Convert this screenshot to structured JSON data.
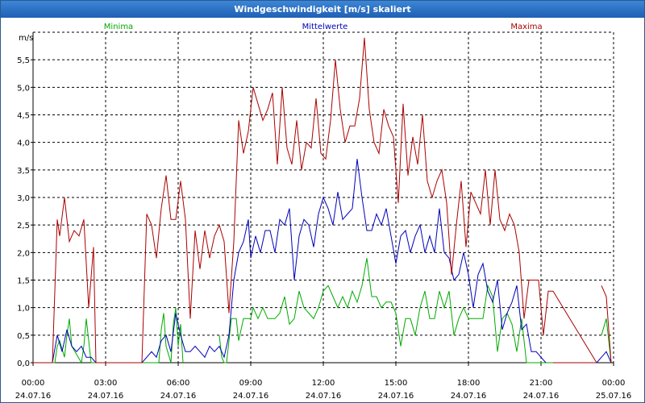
{
  "window": {
    "title": "Windgeschwindigkeit [m/s] skaliert"
  },
  "colors": {
    "minima": "#00aa00",
    "mittel": "#0000bb",
    "maxima": "#aa0000",
    "grid": "#000000",
    "axis": "#000000"
  },
  "chart_data": {
    "type": "line",
    "title": "Windgeschwindigkeit [m/s] skaliert",
    "ylabel": "m/s",
    "ylim": [
      0,
      6.0
    ],
    "y_ticks": [
      0.0,
      0.5,
      1.0,
      1.5,
      2.0,
      2.5,
      3.0,
      3.5,
      4.0,
      4.5,
      5.0,
      5.5
    ],
    "y_tick_labels": [
      "0,0",
      "0,5",
      "1,0",
      "1,5",
      "2,0",
      "2,5",
      "3,0",
      "3,5",
      "4,0",
      "4,5",
      "5,0",
      "5,5"
    ],
    "xlim": [
      0,
      24
    ],
    "x_ticks": [
      0,
      3,
      6,
      9,
      12,
      15,
      18,
      21,
      24
    ],
    "x_tick_labels": [
      [
        "00:00",
        "24.07.16"
      ],
      [
        "03:00",
        "24.07.16"
      ],
      [
        "06:00",
        "24.07.16"
      ],
      [
        "09:00",
        "24.07.16"
      ],
      [
        "12:00",
        "24.07.16"
      ],
      [
        "15:00",
        "24.07.16"
      ],
      [
        "18:00",
        "24.07.16"
      ],
      [
        "21:00",
        "24.07.16"
      ],
      [
        "00:00",
        "25.07.16"
      ]
    ],
    "series": [
      {
        "name": "Minima",
        "color": "#00aa00",
        "x": [
          0,
          0.9,
          1.0,
          1.1,
          1.3,
          1.4,
          1.5,
          1.6,
          2.0,
          2.1,
          2.2,
          2.4,
          2.6,
          4.5,
          5.2,
          5.3,
          5.4,
          5.5,
          5.7,
          5.8,
          5.9,
          6.0,
          6.1,
          6.2,
          7.5,
          7.7,
          7.8,
          7.9,
          8.0,
          8.2,
          8.4,
          8.5,
          8.7,
          8.8,
          9.0,
          9.1,
          9.3,
          9.5,
          9.7,
          10.0,
          10.2,
          10.4,
          10.6,
          10.8,
          11.0,
          11.2,
          11.4,
          11.6,
          11.8,
          12.0,
          12.2,
          12.4,
          12.6,
          12.8,
          13.0,
          13.2,
          13.4,
          13.6,
          13.8,
          14.0,
          14.2,
          14.4,
          14.6,
          14.8,
          15.0,
          15.2,
          15.4,
          15.6,
          15.8,
          16.0,
          16.2,
          16.4,
          16.6,
          16.8,
          17.0,
          17.2,
          17.4,
          17.6,
          17.8,
          18.0,
          18.2,
          18.4,
          18.6,
          18.8,
          19.0,
          19.2,
          19.4,
          19.6,
          19.8,
          20.0,
          20.2,
          20.4,
          23.3,
          23.5,
          23.7,
          23.9
        ],
        "values": [
          0,
          0,
          0.3,
          0.4,
          0.1,
          0.5,
          0.8,
          0.3,
          0,
          0.3,
          0.8,
          0,
          0,
          0,
          0,
          0.6,
          0.9,
          0.3,
          0,
          0.7,
          1.0,
          0.3,
          0.7,
          0,
          0,
          0.5,
          0.1,
          0,
          0,
          0.8,
          0.8,
          0.4,
          0.8,
          0.8,
          0.8,
          1.0,
          0.8,
          1.0,
          0.8,
          0.8,
          0.9,
          1.2,
          0.7,
          0.8,
          1.3,
          1.0,
          0.9,
          0.8,
          1.0,
          1.3,
          1.4,
          1.2,
          1.0,
          1.2,
          1.0,
          1.3,
          1.1,
          1.4,
          1.9,
          1.2,
          1.2,
          1.0,
          1.1,
          1.1,
          0.9,
          0.3,
          0.8,
          0.8,
          0.5,
          1.0,
          1.3,
          0.8,
          0.8,
          1.3,
          1.0,
          1.3,
          0.5,
          0.8,
          1.0,
          0.8,
          0.8,
          0.8,
          0.8,
          1.4,
          1.2,
          0.2,
          0.8,
          0.9,
          0.7,
          0.2,
          0.8,
          0,
          0,
          0.5,
          0.8,
          0
        ],
        "segments": [
          [
            0,
            24
          ],
          [
            24,
            25
          ],
          [
            25,
            93
          ],
          [
            93,
            96
          ]
        ]
      },
      {
        "name": "Mittelwerte",
        "color": "#0000bb",
        "x": [
          0,
          0.8,
          1.0,
          1.2,
          1.4,
          1.6,
          1.8,
          2.0,
          2.2,
          2.4,
          2.6,
          4.5,
          4.7,
          4.9,
          5.1,
          5.3,
          5.5,
          5.7,
          5.9,
          6.1,
          6.3,
          6.5,
          6.7,
          6.9,
          7.1,
          7.3,
          7.5,
          7.7,
          7.9,
          8.1,
          8.3,
          8.5,
          8.7,
          8.9,
          9.0,
          9.2,
          9.4,
          9.6,
          9.8,
          10.0,
          10.2,
          10.4,
          10.6,
          10.8,
          11.0,
          11.2,
          11.4,
          11.6,
          11.8,
          12.0,
          12.2,
          12.4,
          12.6,
          12.8,
          13.0,
          13.2,
          13.4,
          13.6,
          13.8,
          14.0,
          14.2,
          14.4,
          14.6,
          14.8,
          15.0,
          15.2,
          15.4,
          15.6,
          15.8,
          16.0,
          16.2,
          16.4,
          16.6,
          16.8,
          17.0,
          17.2,
          17.4,
          17.6,
          17.8,
          18.0,
          18.2,
          18.4,
          18.6,
          18.8,
          19.0,
          19.2,
          19.4,
          19.6,
          19.8,
          20.0,
          20.2,
          20.4,
          20.6,
          20.8,
          21.0,
          21.2,
          23.3,
          23.5,
          23.7,
          23.9
        ],
        "values": [
          0,
          0,
          0.5,
          0.2,
          0.6,
          0.3,
          0.2,
          0.3,
          0.1,
          0.1,
          0,
          0,
          0.1,
          0.2,
          0.1,
          0.4,
          0.5,
          0.2,
          0.9,
          0.5,
          0.2,
          0.2,
          0.3,
          0.2,
          0.1,
          0.3,
          0.2,
          0.3,
          0.1,
          0.5,
          1.5,
          2.0,
          2.2,
          2.6,
          1.9,
          2.3,
          2.0,
          2.4,
          2.4,
          2.0,
          2.6,
          2.5,
          2.8,
          1.5,
          2.3,
          2.6,
          2.5,
          2.1,
          2.7,
          3.0,
          2.8,
          2.5,
          3.1,
          2.6,
          2.7,
          2.8,
          3.7,
          3.0,
          2.4,
          2.4,
          2.7,
          2.5,
          2.8,
          2.3,
          1.8,
          2.3,
          2.4,
          2.0,
          2.3,
          2.5,
          2.0,
          2.3,
          2.0,
          2.8,
          2.0,
          1.9,
          1.5,
          1.6,
          2.0,
          1.6,
          1.0,
          1.6,
          1.8,
          1.3,
          1.1,
          1.5,
          0.6,
          0.9,
          1.1,
          1.4,
          0.6,
          0.7,
          0.2,
          0.2,
          0.1,
          0,
          0,
          0.1,
          0.2,
          0
        ],
        "segments": [
          [
            0,
            11
          ],
          [
            11,
            96
          ],
          [
            96,
            100
          ]
        ]
      },
      {
        "name": "Maxima",
        "color": "#aa0000",
        "x": [
          0,
          0.8,
          1.0,
          1.1,
          1.3,
          1.5,
          1.7,
          1.9,
          2.1,
          2.3,
          2.5,
          2.6,
          4.5,
          4.7,
          4.9,
          5.1,
          5.3,
          5.5,
          5.7,
          5.9,
          6.1,
          6.3,
          6.5,
          6.7,
          6.9,
          7.1,
          7.3,
          7.5,
          7.7,
          7.9,
          8.1,
          8.3,
          8.5,
          8.7,
          8.9,
          9.1,
          9.3,
          9.5,
          9.7,
          9.9,
          10.1,
          10.3,
          10.5,
          10.7,
          10.9,
          11.1,
          11.3,
          11.5,
          11.7,
          11.9,
          12.1,
          12.3,
          12.5,
          12.7,
          12.9,
          13.1,
          13.3,
          13.5,
          13.7,
          13.9,
          14.1,
          14.3,
          14.5,
          14.7,
          14.9,
          15.1,
          15.3,
          15.5,
          15.7,
          15.9,
          16.1,
          16.3,
          16.5,
          16.7,
          16.9,
          17.1,
          17.3,
          17.5,
          17.7,
          17.9,
          18.1,
          18.3,
          18.5,
          18.7,
          18.9,
          19.1,
          19.3,
          19.5,
          19.7,
          19.9,
          20.1,
          20.3,
          20.5,
          20.7,
          20.9,
          21.1,
          21.3,
          21.5,
          23.3,
          23.5,
          23.7,
          23.9
        ],
        "values": [
          0,
          0,
          2.6,
          2.3,
          3.0,
          2.2,
          2.4,
          2.3,
          2.6,
          1.0,
          2.1,
          0,
          0,
          2.7,
          2.5,
          1.9,
          2.8,
          3.4,
          2.6,
          2.6,
          3.3,
          2.6,
          0.8,
          2.4,
          1.7,
          2.4,
          1.9,
          2.3,
          2.5,
          2.2,
          0.9,
          2.2,
          4.4,
          3.8,
          4.2,
          5.0,
          4.7,
          4.4,
          4.6,
          4.9,
          3.6,
          5.0,
          3.9,
          3.6,
          4.4,
          3.5,
          4.0,
          3.9,
          4.8,
          3.8,
          3.7,
          4.4,
          5.5,
          4.6,
          4.0,
          4.3,
          4.3,
          4.8,
          5.9,
          4.6,
          4.0,
          3.8,
          4.6,
          4.3,
          4.1,
          2.9,
          4.7,
          3.4,
          4.1,
          3.6,
          4.5,
          3.3,
          3.0,
          3.3,
          3.5,
          2.9,
          1.6,
          2.5,
          3.3,
          2.1,
          3.1,
          2.9,
          2.7,
          3.5,
          2.5,
          3.5,
          2.6,
          2.4,
          2.7,
          2.5,
          2.0,
          0.8,
          1.5,
          1.5,
          1.5,
          0.5,
          1.3,
          1.3,
          0,
          1.4,
          1.2,
          0
        ],
        "segments": [
          [
            0,
            12
          ],
          [
            12,
            99
          ],
          [
            99,
            102
          ]
        ]
      }
    ]
  }
}
